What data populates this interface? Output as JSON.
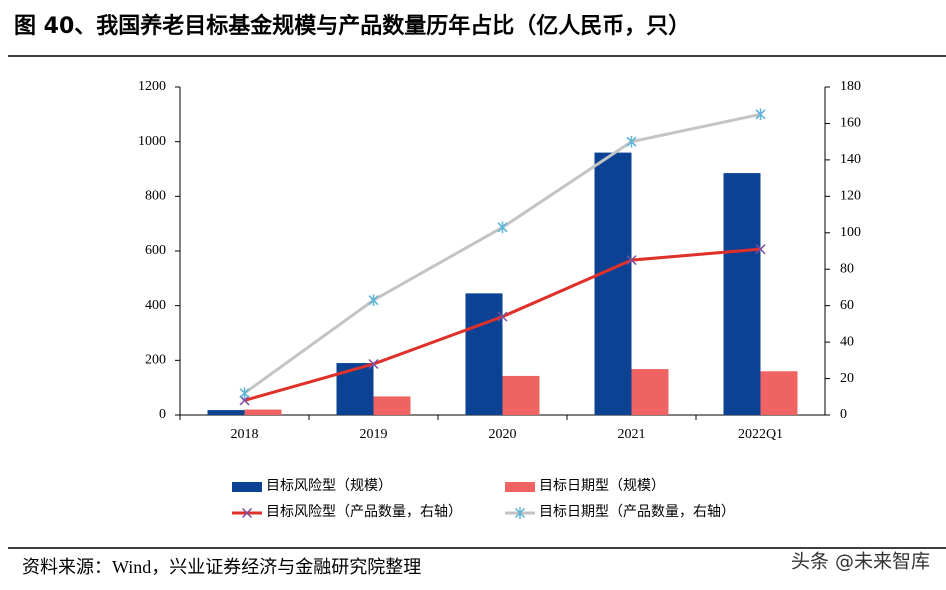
{
  "chart_data": {
    "type": "bar",
    "title": "图 40、我国养老目标基金规模与产品数量历年占比（亿人民币，只）",
    "categories": [
      "2018",
      "2019",
      "2020",
      "2021",
      "2022Q1"
    ],
    "series": [
      {
        "name": "目标风险型（规模）",
        "type": "bar",
        "color": "#0b4294",
        "values": [
          18,
          190,
          445,
          960,
          885
        ]
      },
      {
        "name": "目标日期型（规模）",
        "type": "bar",
        "color": "#ef6463",
        "values": [
          20,
          68,
          143,
          168,
          160
        ]
      },
      {
        "name": "目标风险型（产品数量，右轴）",
        "type": "line",
        "axis": "y2",
        "color": "#e0302a",
        "marker": "x",
        "marker_color": "#7b4fa0",
        "values": [
          8,
          28,
          54,
          85,
          91
        ]
      },
      {
        "name": "目标日期型（产品数量，右轴）",
        "type": "line",
        "axis": "y2",
        "color": "#c4c4c4",
        "marker": "star",
        "marker_color": "#5ab4d8",
        "values": [
          12,
          63,
          103,
          150,
          165
        ]
      }
    ],
    "ylim": [
      0,
      1200
    ],
    "yticks": [
      0,
      200,
      400,
      600,
      800,
      1000,
      1200
    ],
    "y2lim": [
      0,
      180
    ],
    "y2ticks": [
      0,
      20,
      40,
      60,
      80,
      100,
      120,
      140,
      160,
      180
    ],
    "grid": false,
    "source": "资料来源：Wind，兴业证券经济与金融研究院整理",
    "watermark": "头条 @未来智库"
  }
}
